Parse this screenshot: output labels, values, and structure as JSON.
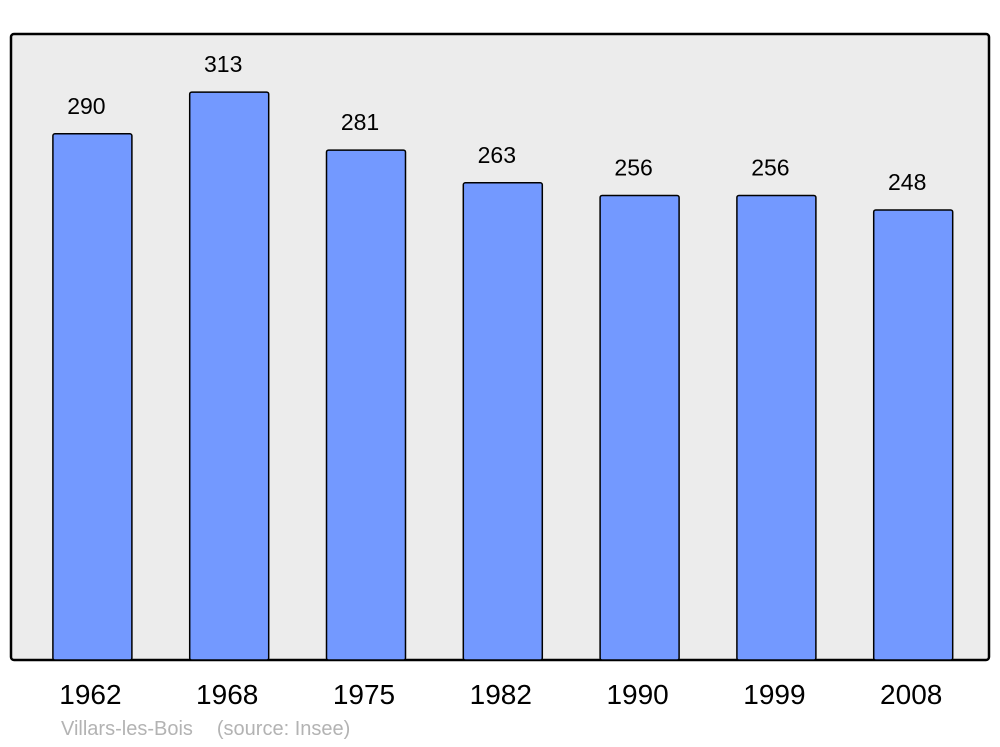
{
  "chart_data": {
    "type": "bar",
    "categories": [
      "1962",
      "1968",
      "1975",
      "1982",
      "1990",
      "1999",
      "2008"
    ],
    "values": [
      290,
      313,
      281,
      263,
      256,
      256,
      248
    ],
    "title": "",
    "xlabel": "",
    "ylabel": "",
    "ylim": [
      0,
      345
    ],
    "grid": false,
    "data_labels": true,
    "colors": {
      "bar": "#7399ff",
      "plot_background": "#ececec",
      "border": "#000000"
    }
  },
  "footer": {
    "place": "Villars-les-Bois",
    "source": "(source: Insee)"
  }
}
